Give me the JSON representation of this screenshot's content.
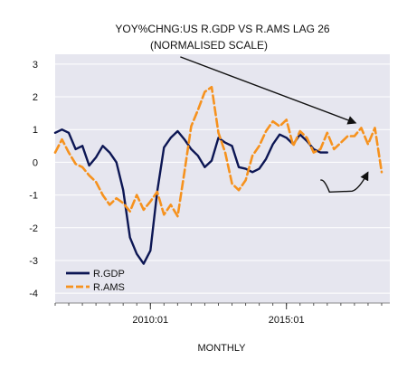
{
  "chart_data": {
    "type": "line",
    "title": "YOY%CHNG:US R.GDP VS R.AMS LAG 26",
    "subtitle": "(NORMALISED SCALE)",
    "xlabel": "MONTHLY",
    "ylabel": "",
    "ylim": [
      -4.3,
      3.3
    ],
    "xlim": [
      2006.5,
      2018.8
    ],
    "y_ticks": [
      3,
      2,
      1,
      0,
      -1,
      -2,
      -3,
      -4
    ],
    "y_tick_labels": [
      "3",
      "2",
      "1",
      "0",
      "-1",
      "-2",
      "-3",
      "-4"
    ],
    "x_ticks": [
      2010.0,
      2015.0
    ],
    "x_tick_labels": [
      "2010:01",
      "2015:01"
    ],
    "x_minor_start": 2006.5,
    "x_minor_step": 0.5,
    "grid": true,
    "legend": "bottom-left",
    "colors": {
      "background": "#e6e6ef",
      "grid": "#ffffff",
      "gdp": "#0c1654",
      "ams": "#f6921e",
      "annotation": "#111111"
    },
    "series": [
      {
        "name": "R.GDP",
        "style": "solid",
        "color": "#0c1654",
        "points": [
          [
            2006.5,
            0.9
          ],
          [
            2006.75,
            1.0
          ],
          [
            2007.0,
            0.9
          ],
          [
            2007.25,
            0.4
          ],
          [
            2007.5,
            0.5
          ],
          [
            2007.75,
            -0.1
          ],
          [
            2008.0,
            0.15
          ],
          [
            2008.25,
            0.5
          ],
          [
            2008.5,
            0.3
          ],
          [
            2008.75,
            0.0
          ],
          [
            2009.0,
            -0.85
          ],
          [
            2009.25,
            -2.3
          ],
          [
            2009.5,
            -2.8
          ],
          [
            2009.75,
            -3.1
          ],
          [
            2010.0,
            -2.7
          ],
          [
            2010.25,
            -0.9
          ],
          [
            2010.5,
            0.45
          ],
          [
            2010.75,
            0.75
          ],
          [
            2011.0,
            0.95
          ],
          [
            2011.25,
            0.7
          ],
          [
            2011.5,
            0.4
          ],
          [
            2011.75,
            0.2
          ],
          [
            2012.0,
            -0.15
          ],
          [
            2012.25,
            0.05
          ],
          [
            2012.5,
            0.75
          ],
          [
            2012.75,
            0.6
          ],
          [
            2013.0,
            0.5
          ],
          [
            2013.25,
            -0.15
          ],
          [
            2013.5,
            -0.2
          ],
          [
            2013.75,
            -0.3
          ],
          [
            2014.0,
            -0.2
          ],
          [
            2014.25,
            0.1
          ],
          [
            2014.5,
            0.55
          ],
          [
            2014.75,
            0.85
          ],
          [
            2015.0,
            0.75
          ],
          [
            2015.25,
            0.55
          ],
          [
            2015.5,
            0.85
          ],
          [
            2015.75,
            0.65
          ],
          [
            2016.0,
            0.4
          ],
          [
            2016.25,
            0.3
          ],
          [
            2016.5,
            0.3
          ]
        ]
      },
      {
        "name": "R.AMS",
        "style": "dashed",
        "color": "#f6921e",
        "points": [
          [
            2006.5,
            0.3
          ],
          [
            2006.75,
            0.7
          ],
          [
            2007.0,
            0.3
          ],
          [
            2007.25,
            -0.05
          ],
          [
            2007.5,
            -0.15
          ],
          [
            2007.75,
            -0.4
          ],
          [
            2008.0,
            -0.6
          ],
          [
            2008.25,
            -1.0
          ],
          [
            2008.5,
            -1.3
          ],
          [
            2008.75,
            -1.1
          ],
          [
            2009.0,
            -1.25
          ],
          [
            2009.25,
            -1.5
          ],
          [
            2009.5,
            -1.0
          ],
          [
            2009.75,
            -1.45
          ],
          [
            2010.0,
            -1.2
          ],
          [
            2010.25,
            -0.9
          ],
          [
            2010.5,
            -1.6
          ],
          [
            2010.75,
            -1.3
          ],
          [
            2011.0,
            -1.65
          ],
          [
            2011.25,
            -0.3
          ],
          [
            2011.5,
            1.1
          ],
          [
            2011.75,
            1.6
          ],
          [
            2012.0,
            2.15
          ],
          [
            2012.25,
            2.3
          ],
          [
            2012.5,
            0.9
          ],
          [
            2012.75,
            0.3
          ],
          [
            2013.0,
            -0.65
          ],
          [
            2013.25,
            -0.85
          ],
          [
            2013.5,
            -0.55
          ],
          [
            2013.75,
            0.2
          ],
          [
            2014.0,
            0.5
          ],
          [
            2014.25,
            0.95
          ],
          [
            2014.5,
            1.25
          ],
          [
            2014.75,
            1.1
          ],
          [
            2015.0,
            1.3
          ],
          [
            2015.25,
            0.5
          ],
          [
            2015.5,
            0.95
          ],
          [
            2015.75,
            0.75
          ],
          [
            2016.0,
            0.3
          ],
          [
            2016.25,
            0.4
          ],
          [
            2016.5,
            0.9
          ],
          [
            2016.75,
            0.4
          ],
          [
            2017.0,
            0.6
          ],
          [
            2017.25,
            0.8
          ],
          [
            2017.5,
            0.8
          ],
          [
            2017.75,
            1.05
          ],
          [
            2018.0,
            0.55
          ],
          [
            2018.25,
            1.05
          ],
          [
            2018.5,
            -0.3
          ]
        ]
      }
    ],
    "annotations": [
      {
        "type": "arrow",
        "from": [
          2011.1,
          3.22
        ],
        "to": [
          2017.55,
          1.2
        ]
      },
      {
        "type": "arrow",
        "from": [
          2016.25,
          -0.55
        ],
        "to": [
          2018.0,
          -0.3
        ]
      }
    ]
  }
}
